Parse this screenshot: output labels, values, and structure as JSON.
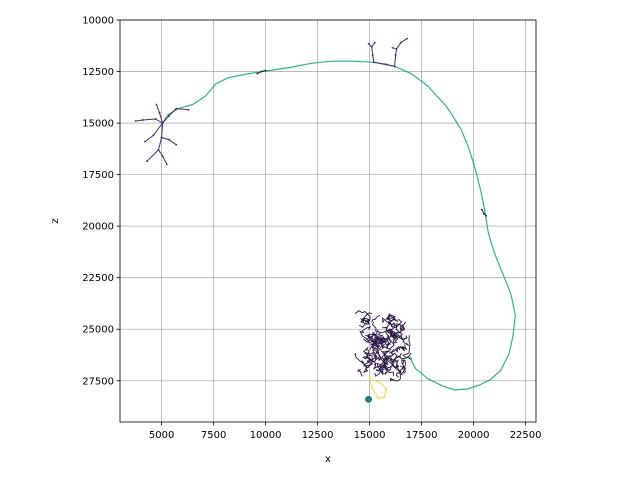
{
  "chart_data": {
    "type": "line",
    "title": "",
    "xlabel": "x",
    "ylabel": "z",
    "xlim": [
      3000,
      23000
    ],
    "ylim": [
      29500,
      10000
    ],
    "y_inverted": true,
    "grid": true,
    "xticks": [
      5000,
      7500,
      10000,
      12500,
      15000,
      17500,
      20000,
      22500
    ],
    "yticks": [
      10000,
      12500,
      15000,
      17500,
      20000,
      22500,
      25000,
      27500
    ],
    "xtick_labels": [
      "5000",
      "7500",
      "10000",
      "12500",
      "15000",
      "17500",
      "20000",
      "22500"
    ],
    "ytick_labels": [
      "10000",
      "12500",
      "15000",
      "17500",
      "20000",
      "22500",
      "25000",
      "27500"
    ],
    "colors": {
      "axon_trace": "#2db48c",
      "dendrite_trace": "#472a7a",
      "dark_trace": "#2a1445",
      "yellow_trace": "#f0d83a",
      "soma": "#2a7a8e",
      "grid": "#b0b0b0"
    },
    "series": [
      {
        "role": "long-projection",
        "color": "#2db48c",
        "points": [
          [
            16900,
            26300
          ],
          [
            17200,
            26900
          ],
          [
            17800,
            27400
          ],
          [
            18500,
            27750
          ],
          [
            19100,
            27950
          ],
          [
            19700,
            27900
          ],
          [
            20300,
            27700
          ],
          [
            20800,
            27450
          ],
          [
            21300,
            27000
          ],
          [
            21700,
            26200
          ],
          [
            21900,
            25300
          ],
          [
            22000,
            24300
          ],
          [
            21800,
            23300
          ],
          [
            21400,
            22300
          ],
          [
            21000,
            21300
          ],
          [
            20700,
            20300
          ],
          [
            20550,
            19300
          ],
          [
            20350,
            18300
          ],
          [
            20100,
            17300
          ],
          [
            19800,
            16300
          ],
          [
            19400,
            15300
          ],
          [
            18700,
            14200
          ],
          [
            17800,
            13200
          ],
          [
            17000,
            12600
          ],
          [
            16200,
            12250
          ],
          [
            15200,
            12050
          ],
          [
            14200,
            12000
          ],
          [
            13200,
            12000
          ],
          [
            12200,
            12100
          ],
          [
            11200,
            12300
          ],
          [
            10200,
            12450
          ],
          [
            9200,
            12600
          ],
          [
            8200,
            12800
          ],
          [
            7600,
            13100
          ],
          [
            7100,
            13700
          ],
          [
            6500,
            14100
          ],
          [
            5800,
            14300
          ],
          [
            5300,
            14600
          ],
          [
            5050,
            15000
          ]
        ]
      },
      {
        "role": "left-arbor",
        "color": "#472a7a",
        "points": [
          [
            5050,
            15000
          ],
          [
            4700,
            14800
          ],
          [
            4100,
            14850
          ],
          [
            3750,
            14900
          ],
          [
            4100,
            14850
          ],
          [
            4700,
            14800
          ],
          [
            5050,
            15000
          ],
          [
            4900,
            14500
          ],
          [
            4750,
            14100
          ],
          [
            4900,
            14500
          ],
          [
            5050,
            15000
          ],
          [
            5350,
            14650
          ],
          [
            5700,
            14300
          ],
          [
            6300,
            14350
          ],
          [
            5700,
            14300
          ],
          [
            5350,
            14650
          ],
          [
            5050,
            15000
          ],
          [
            4600,
            15600
          ],
          [
            4200,
            15900
          ],
          [
            4600,
            15600
          ],
          [
            5050,
            15000
          ],
          [
            5000,
            15700
          ],
          [
            4850,
            16300
          ],
          [
            4300,
            16850
          ],
          [
            4850,
            16300
          ],
          [
            5050,
            16600
          ],
          [
            5250,
            17000
          ],
          [
            5050,
            16600
          ],
          [
            4850,
            16300
          ],
          [
            5000,
            15700
          ],
          [
            5350,
            15800
          ],
          [
            5700,
            16050
          ],
          [
            5350,
            15800
          ],
          [
            5000,
            15700
          ],
          [
            5050,
            15000
          ]
        ]
      },
      {
        "role": "top-branches",
        "color": "#472a7a",
        "points": [
          [
            15200,
            12050
          ],
          [
            15150,
            11700
          ],
          [
            15100,
            11300
          ],
          [
            14950,
            11150
          ],
          [
            15100,
            11300
          ],
          [
            15250,
            11100
          ],
          [
            15100,
            11300
          ],
          [
            15150,
            11700
          ],
          [
            15200,
            12050
          ],
          [
            15800,
            12150
          ],
          [
            16200,
            12250
          ],
          [
            16250,
            11700
          ],
          [
            16300,
            11400
          ],
          [
            16100,
            11350
          ],
          [
            16300,
            11400
          ],
          [
            16500,
            11100
          ],
          [
            16800,
            10900
          ],
          [
            16500,
            11100
          ],
          [
            16300,
            11400
          ],
          [
            16250,
            11700
          ],
          [
            16200,
            12250
          ]
        ]
      },
      {
        "role": "small-spur-left",
        "color": "#2a1445",
        "points": [
          [
            9600,
            12600
          ],
          [
            9800,
            12500
          ],
          [
            10000,
            12450
          ]
        ]
      },
      {
        "role": "small-spur-right",
        "color": "#2a1445",
        "points": [
          [
            20400,
            19200
          ],
          [
            20500,
            19400
          ],
          [
            20600,
            19500
          ]
        ]
      },
      {
        "role": "yellow-segment",
        "color": "#f0d83a",
        "points": [
          [
            15000,
            27300
          ],
          [
            15100,
            27800
          ],
          [
            15400,
            28350
          ],
          [
            15700,
            28300
          ],
          [
            15800,
            27900
          ],
          [
            15500,
            27600
          ],
          [
            15300,
            27500
          ]
        ]
      }
    ],
    "dense_cluster": {
      "role": "local-arbor",
      "color": "#2a1445",
      "x_range": [
        14300,
        17000
      ],
      "z_range": [
        24100,
        27500
      ],
      "segments": 90
    },
    "soma": {
      "x": 14950,
      "z": 28400
    }
  }
}
